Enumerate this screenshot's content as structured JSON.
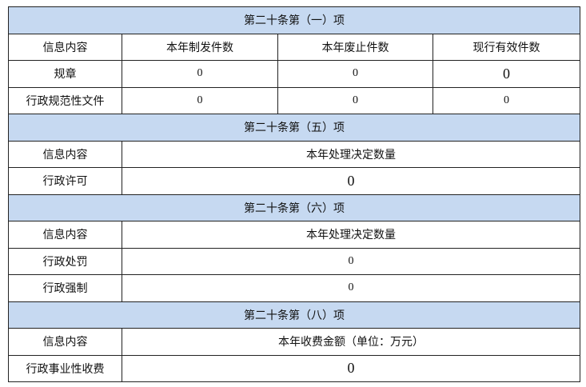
{
  "sections": [
    {
      "title": "第二十条第（一）项",
      "header": [
        "信息内容",
        "本年制发件数",
        "本年废止件数",
        "现行有效件数"
      ],
      "rows": [
        [
          "规章",
          "0",
          "0",
          "0"
        ],
        [
          "行政规范性文件",
          "0",
          "0",
          "0"
        ]
      ]
    },
    {
      "title": "第二十条第（五）项",
      "header": [
        "信息内容",
        "本年处理决定数量"
      ],
      "rows": [
        [
          "行政许可",
          "0"
        ]
      ]
    },
    {
      "title": "第二十条第（六）项",
      "header": [
        "信息内容",
        "本年处理决定数量"
      ],
      "rows": [
        [
          "行政处罚",
          "0"
        ],
        [
          "行政强制",
          "0"
        ]
      ]
    },
    {
      "title": "第二十条第（八）项",
      "header": [
        "信息内容",
        "本年收费金额（单位：万元）"
      ],
      "rows": [
        [
          "行政事业性收费",
          "0"
        ]
      ]
    }
  ],
  "colors": {
    "section_header_bg": "#c6d9f1",
    "border": "#222222"
  }
}
